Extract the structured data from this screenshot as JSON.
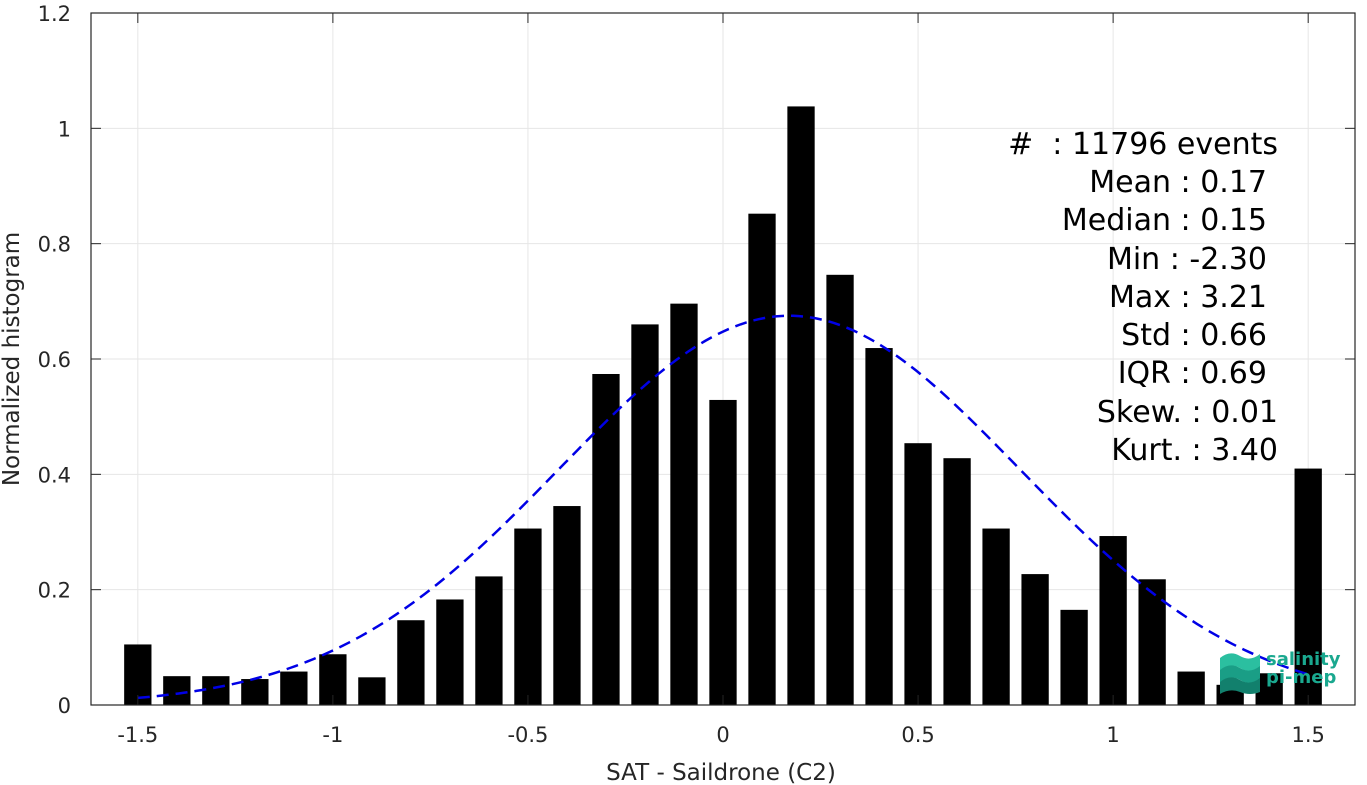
{
  "chart_data": {
    "type": "bar",
    "xlabel": "SAT - Saildrone (C2)",
    "ylabel": "Normalized histogram",
    "xlim": [
      -1.62,
      1.62
    ],
    "ylim": [
      0,
      1.2
    ],
    "grid": true,
    "x_ticks": [
      "-1.5",
      "-1",
      "-0.5",
      "0",
      "0.5",
      "1",
      "1.5"
    ],
    "y_ticks": [
      "0",
      "0.2",
      "0.4",
      "0.6",
      "0.8",
      "1",
      "1.2"
    ],
    "bin_width": 0.1,
    "x": [
      -1.5,
      -1.4,
      -1.3,
      -1.2,
      -1.1,
      -1.0,
      -0.9,
      -0.8,
      -0.7,
      -0.6,
      -0.5,
      -0.4,
      -0.3,
      -0.2,
      -0.1,
      0.0,
      0.1,
      0.2,
      0.3,
      0.4,
      0.5,
      0.6,
      0.7,
      0.8,
      0.9,
      1.0,
      1.1,
      1.2,
      1.3,
      1.4,
      1.5
    ],
    "values": [
      0.105,
      0.05,
      0.05,
      0.045,
      0.058,
      0.088,
      0.048,
      0.147,
      0.183,
      0.223,
      0.306,
      0.345,
      0.574,
      0.66,
      0.696,
      0.529,
      0.852,
      1.038,
      0.746,
      0.619,
      0.454,
      0.428,
      0.306,
      0.227,
      0.165,
      0.293,
      0.218,
      0.058,
      0.035,
      0.055,
      0.41
    ],
    "bar_color": "#000000",
    "fit": {
      "type": "normal",
      "mean": 0.17,
      "std": 0.59,
      "peak": 0.675,
      "x_range": [
        -1.5,
        1.5
      ],
      "color": "#0000e6",
      "style": "dashed"
    }
  },
  "stats": [
    "#  : 11796 events",
    "Mean : 0.17",
    "Median : 0.15",
    "Min : -2.30",
    "Max : 3.21",
    "Std : 0.66",
    "IQR : 0.69",
    "Skew. : 0.01",
    "Kurt. : 3.40"
  ],
  "logo": {
    "line1": "salinity",
    "line2": "pi-mep",
    "color": "#1aa88f"
  }
}
